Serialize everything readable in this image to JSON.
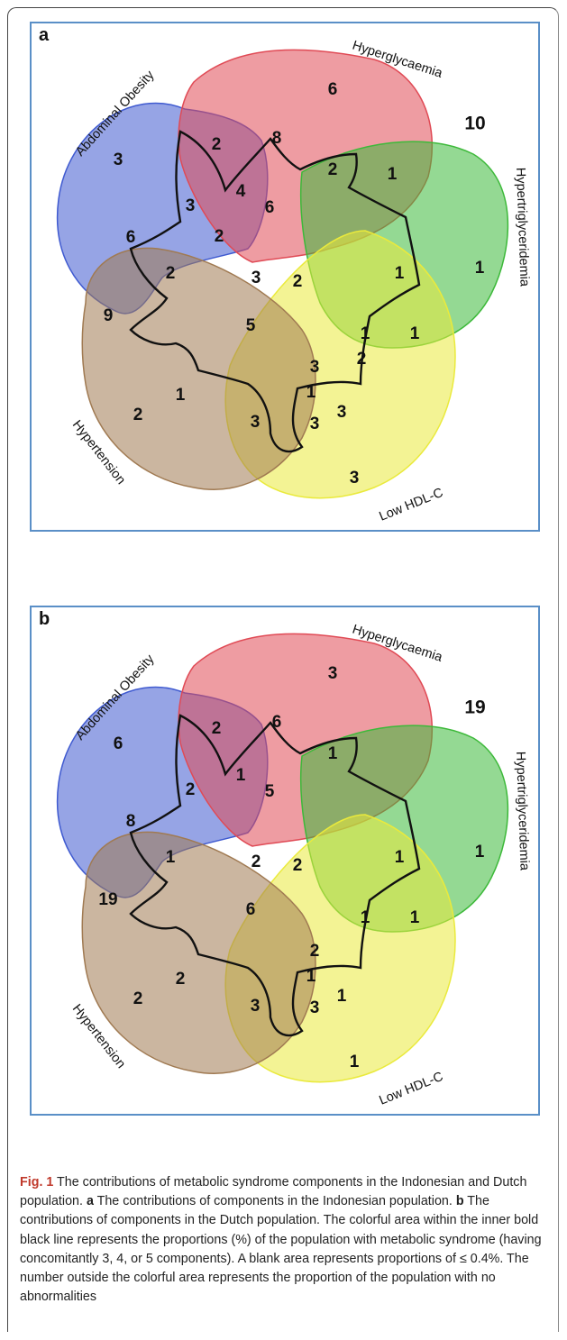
{
  "panels": [
    {
      "letter": "a",
      "labels": {
        "abdominal": "Abdominal Obesity",
        "hyperglycaemia": "Hyperglycaemia",
        "hypertriglyceridemia": "Hypertriglyceridemia",
        "low_hdl": "Low HDL-C",
        "hypertension": "Hypertension"
      },
      "no_abnormality": "10",
      "values": [
        "3",
        "2",
        "6",
        "8",
        "2",
        "1",
        "1",
        "1",
        "1",
        "2",
        "1",
        "3",
        "3",
        "3",
        "1",
        "2",
        "9",
        "6",
        "3",
        "2",
        "2",
        "4",
        "6",
        "2",
        "5",
        "1",
        "3",
        "3",
        "3"
      ]
    },
    {
      "letter": "b",
      "labels": {
        "abdominal": "Abdominal Obesity",
        "hyperglycaemia": "Hyperglycaemia",
        "hypertriglyceridemia": "Hypertriglyceridemia",
        "low_hdl": "Low HDL-C",
        "hypertension": "Hypertension"
      },
      "no_abnormality": "19",
      "values": [
        "6",
        "2",
        "3",
        "6",
        "1",
        "",
        "1",
        "1",
        "1",
        "",
        "1",
        "1",
        "1",
        "3",
        "2",
        "2",
        "19",
        "8",
        "2",
        "1",
        "",
        "1",
        "5",
        "2",
        "6",
        "1",
        "2",
        "2",
        "3"
      ]
    }
  ],
  "colors": {
    "abdominal": "#3f5ad0",
    "hyperglycaemia": "#e04a55",
    "hypertriglyceridemia": "#3db93a",
    "low_hdl": "#eaea3c",
    "hypertension": "#a07a52",
    "frame": "#5a8fc7"
  },
  "caption": {
    "fig_label": "Fig. 1",
    "t1": "  The contributions of metabolic syndrome components in the Indonesian and Dutch population. ",
    "a": "a",
    "t2": " The contributions of components in the Indonesian population. ",
    "b": "b",
    "t3": " The contributions of components in the Dutch population. The colorful area within the inner bold black line represents the proportions (%) of the population with metabolic syndrome (having concomitantly 3, 4, or 5 components). A blank area represents proportions of ≤ 0.4%. The number outside the colorful area represents the proportion of the population with no abnormalities"
  }
}
